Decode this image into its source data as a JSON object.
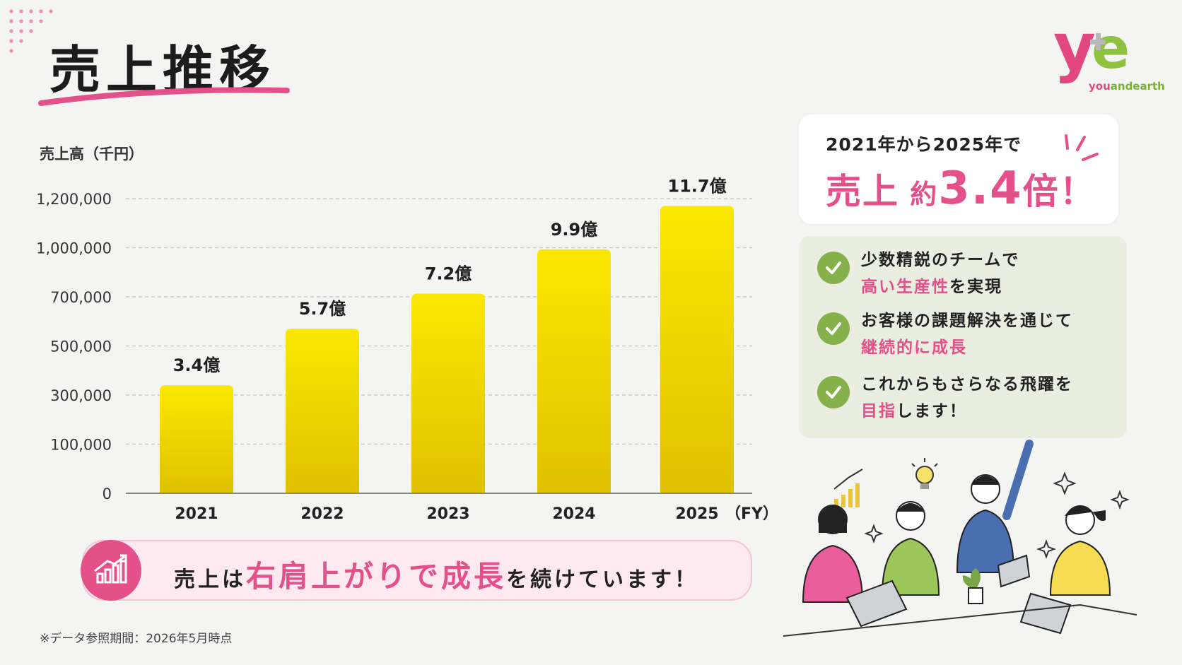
{
  "title": "売上推移",
  "logo": {
    "mark": "ye",
    "text_you": "you",
    "text_rest": "andearth",
    "brand_pink": "#e2487f",
    "brand_green": "#8fc33f"
  },
  "chart_data": {
    "type": "bar",
    "ylabel": "売上高（千円）",
    "x_unit": "（FY）",
    "categories": [
      "2021",
      "2022",
      "2023",
      "2024",
      "2025"
    ],
    "values": [
      340000,
      570000,
      720000,
      990000,
      1170000
    ],
    "data_labels": [
      "3.4億",
      "5.7億",
      "7.2億",
      "9.9億",
      "11.7億"
    ],
    "y_ticks": [
      {
        "label": "0",
        "value": 0
      },
      {
        "label": "100,000",
        "value": 100000
      },
      {
        "label": "300,000",
        "value": 300000
      },
      {
        "label": "500,000",
        "value": 500000
      },
      {
        "label": "700,000",
        "value": 700000
      },
      {
        "label": "1,000,000",
        "value": 1000000
      },
      {
        "label": "1,200,000",
        "value": 1200000
      }
    ],
    "grid": true,
    "bar_color_top": "#fbe800",
    "bar_color_bottom": "#dfc100"
  },
  "summary": {
    "line1": "2021年から2025年で",
    "line2_prefix": "売上",
    "line2_mid": "約",
    "line2_big": "3.4",
    "line2_suffix": "倍！"
  },
  "points": [
    {
      "text1": "少数精鋭のチームで",
      "hl": "高い生産性",
      "text2": "を実現"
    },
    {
      "text1": "お客様の課題解決を通じて",
      "hl": "継続的に成長",
      "text2": ""
    },
    {
      "text1": "これからもさらなる飛躍を",
      "hl": "目指",
      "text2": "します！"
    }
  ],
  "banner": {
    "pre": "売上は",
    "hl": "右肩上がりで成長",
    "post": "を続けています！"
  },
  "footnote": "※データ参照期間：2026年5月時点",
  "colors": {
    "accent_pink": "#e4508a",
    "check_green": "#86b04a"
  }
}
